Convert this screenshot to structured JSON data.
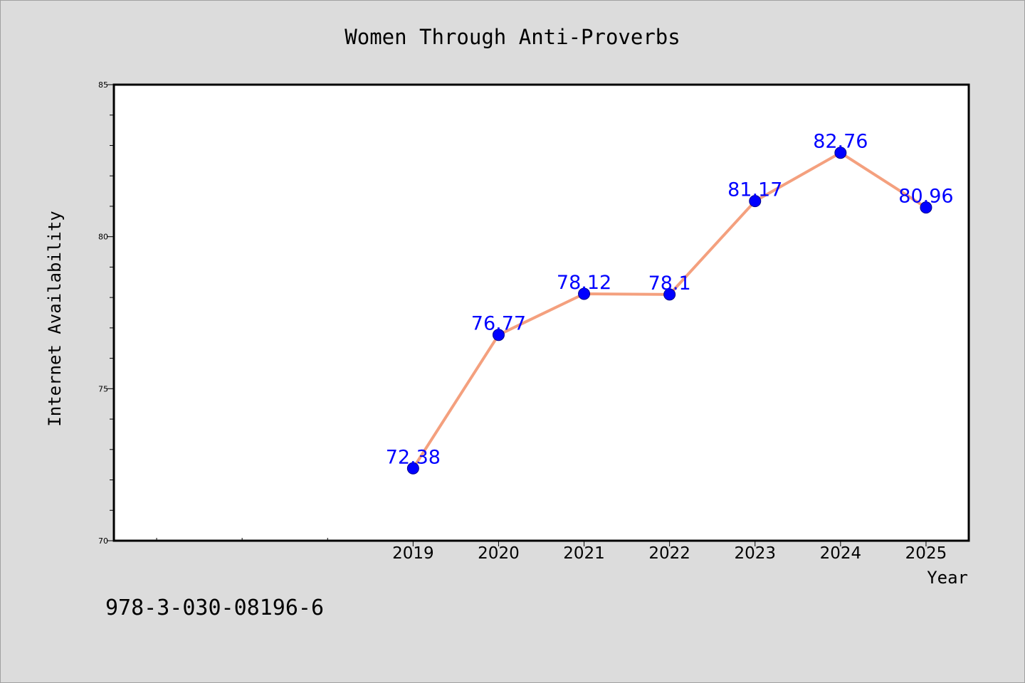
{
  "colors": {
    "background": "#dcdcdc",
    "plot_area": "#ffffff",
    "line": "#f4a07e",
    "marker": "#0000ff",
    "data_label": "#0000ff",
    "text": "#000000"
  },
  "chart_data": {
    "type": "line",
    "title": "Women Through Anti-Proverbs",
    "xlabel": "Year",
    "ylabel": "Internet Availability",
    "x": [
      2019,
      2020,
      2021,
      2022,
      2023,
      2024,
      2025
    ],
    "xlim": [
      2015.5,
      2025.5
    ],
    "x_ticks": [
      2019,
      2020,
      2021,
      2022,
      2023,
      2024,
      2025
    ],
    "x_minor_ticks": [
      2016,
      2017,
      2018
    ],
    "ylim": [
      70,
      85
    ],
    "y_ticks": [
      70,
      75,
      80,
      85
    ],
    "y_minor_step": 1,
    "grid": false,
    "legend": "none",
    "series": [
      {
        "values": [
          72.38,
          76.77,
          78.12,
          78.1,
          81.17,
          82.76,
          80.96
        ],
        "labels": [
          "72.38",
          "76.77",
          "78.12",
          "78.1",
          "81.17",
          "82.76",
          "80.96"
        ]
      }
    ]
  },
  "footer_text": "978-3-030-08196-6"
}
